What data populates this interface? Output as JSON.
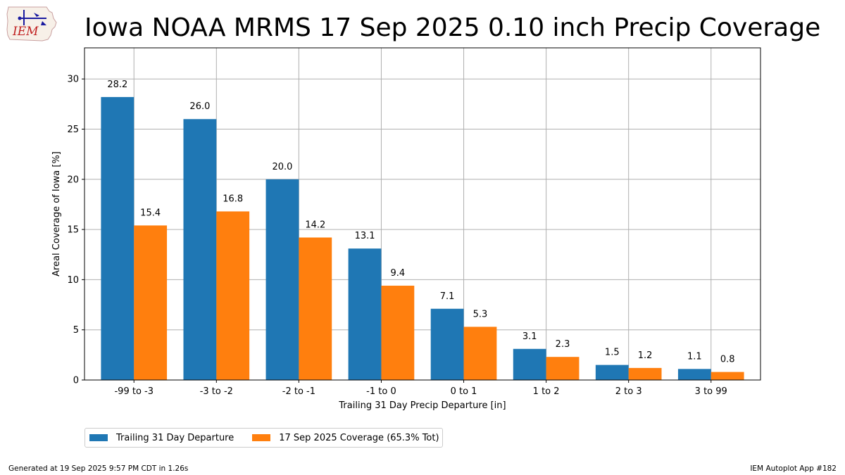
{
  "header": {
    "title": "Iowa NOAA MRMS 17 Sep 2025 0.10 inch Precip Coverage",
    "logo_text": "IEM"
  },
  "chart_data": {
    "type": "bar",
    "categories": [
      "-99 to -3",
      "-3 to -2",
      "-2 to -1",
      "-1 to 0",
      "0 to 1",
      "1 to 2",
      "2 to 3",
      "3 to 99"
    ],
    "series": [
      {
        "name": "Trailing 31 Day Departure",
        "color": "#1f77b4",
        "values": [
          28.2,
          26.0,
          20.0,
          13.1,
          7.1,
          3.1,
          1.5,
          1.1
        ]
      },
      {
        "name": "17 Sep 2025 Coverage (65.3% Tot)",
        "color": "#ff7f0e",
        "values": [
          15.4,
          16.8,
          14.2,
          9.4,
          5.3,
          2.3,
          1.2,
          0.8
        ]
      }
    ],
    "xlabel": "Trailing 31 Day Precip Departure [in]",
    "ylabel": "Areal Coverage of Iowa [%]",
    "ylim": [
      0,
      33.1
    ],
    "yticks": [
      0,
      5,
      10,
      15,
      20,
      25,
      30
    ],
    "grid": true,
    "legend_position": "below"
  },
  "footer": {
    "generated": "Generated at 19 Sep 2025 9:57 PM CDT in 1.26s",
    "app": "IEM Autoplot App #182"
  }
}
